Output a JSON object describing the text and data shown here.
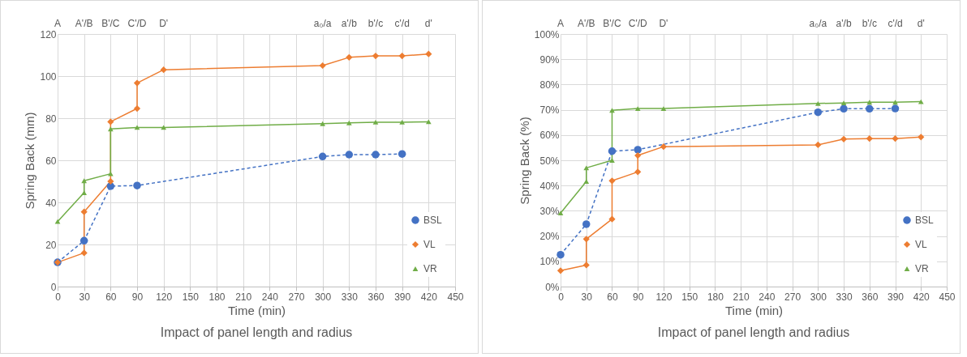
{
  "chart_data": [
    {
      "type": "line",
      "title": "Impact of panel length and radius",
      "xlabel": "Time (min)",
      "ylabel": "Spring Back (mm)",
      "xlim": [
        0,
        450
      ],
      "xticks": [
        0,
        30,
        60,
        90,
        120,
        150,
        180,
        210,
        240,
        270,
        300,
        330,
        360,
        390,
        420,
        450
      ],
      "ylim": [
        0,
        120
      ],
      "yticks": [
        0,
        20,
        40,
        60,
        80,
        100,
        120
      ],
      "annotations": [
        "A",
        "A'/B",
        "B'/C",
        "C'/D",
        "D'",
        "a₀/a",
        "a'/b",
        "b'/c",
        "c'/d",
        "d'"
      ],
      "grid": true,
      "legend": "bottom right",
      "series": [
        {
          "name": "BSL",
          "color": "#4472c4",
          "marker": "circle",
          "line_style": "dashed",
          "x": [
            0,
            30,
            60,
            90,
            300,
            330,
            360,
            390
          ],
          "values": [
            11.5,
            21.8,
            47.7,
            48.0,
            61.8,
            62.7,
            62.7,
            63.0
          ]
        },
        {
          "name": "VL",
          "color": "#ed7d31",
          "marker": "diamond",
          "line_style": "solid",
          "x": [
            0,
            30,
            30,
            60,
            60,
            90,
            90,
            120,
            300,
            330,
            360,
            390,
            420
          ],
          "values": [
            11.5,
            16,
            35.5,
            50,
            78.3,
            84.6,
            96.7,
            103,
            105,
            108.9,
            109.6,
            109.6,
            110.5
          ]
        },
        {
          "name": "VR",
          "color": "#70ad47",
          "marker": "triangle",
          "line_style": "solid",
          "x": [
            0,
            30,
            30,
            60,
            60,
            90,
            120,
            300,
            330,
            360,
            390,
            420
          ],
          "values": [
            30.9,
            44.6,
            50.3,
            53.6,
            74.9,
            75.6,
            75.6,
            77.4,
            77.8,
            78.1,
            78.1,
            78.3
          ]
        }
      ]
    },
    {
      "type": "line",
      "title": "Impact of panel length and radius",
      "xlabel": "Time (min)",
      "ylabel": "Spring Back (%)",
      "xlim": [
        0,
        450
      ],
      "xticks": [
        0,
        30,
        60,
        90,
        120,
        150,
        180,
        210,
        240,
        270,
        300,
        330,
        360,
        390,
        420,
        450
      ],
      "ylim": [
        0,
        100
      ],
      "yticks": [
        {
          "value": 0,
          "label": "0%"
        },
        {
          "value": 10,
          "label": "10%"
        },
        {
          "value": 20,
          "label": "20%"
        },
        {
          "value": 30,
          "label": "30%"
        },
        {
          "value": 40,
          "label": "40%"
        },
        {
          "value": 50,
          "label": "50%"
        },
        {
          "value": 60,
          "label": "60%"
        },
        {
          "value": 70,
          "label": "70%"
        },
        {
          "value": 80,
          "label": "80%"
        },
        {
          "value": 90,
          "label": "90%"
        },
        {
          "value": 100,
          "label": "100%"
        }
      ],
      "annotations": [
        "A",
        "A'/B",
        "B'/C",
        "C'/D",
        "D'",
        "a₀/a",
        "a'/b",
        "b'/c",
        "c'/d",
        "d'"
      ],
      "grid": true,
      "legend": "bottom right",
      "series": [
        {
          "name": "BSL",
          "color": "#4472c4",
          "marker": "circle",
          "line_style": "dashed",
          "x": [
            0,
            30,
            60,
            90,
            300,
            330,
            360,
            390
          ],
          "values": [
            12.6,
            24.7,
            53.6,
            54.2,
            69.0,
            70.4,
            70.4,
            70.5
          ]
        },
        {
          "name": "VL",
          "color": "#ed7d31",
          "marker": "diamond",
          "line_style": "solid",
          "x": [
            0,
            30,
            30,
            60,
            60,
            90,
            90,
            120,
            300,
            330,
            360,
            390,
            420
          ],
          "values": [
            6.3,
            8.5,
            18.8,
            26.7,
            41.9,
            45.4,
            51.9,
            55.4,
            56.1,
            58.4,
            58.6,
            58.6,
            59.2
          ]
        },
        {
          "name": "VR",
          "color": "#70ad47",
          "marker": "triangle",
          "line_style": "solid",
          "x": [
            0,
            30,
            30,
            60,
            60,
            90,
            120,
            300,
            330,
            360,
            390,
            420
          ],
          "values": [
            29.1,
            41.6,
            47.0,
            50.0,
            69.8,
            70.5,
            70.5,
            72.5,
            72.7,
            73.0,
            73.0,
            73.2
          ]
        }
      ]
    }
  ]
}
